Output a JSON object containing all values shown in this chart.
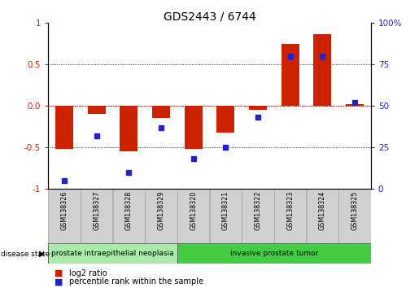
{
  "title": "GDS2443 / 6744",
  "samples": [
    "GSM138326",
    "GSM138327",
    "GSM138328",
    "GSM138329",
    "GSM138320",
    "GSM138321",
    "GSM138322",
    "GSM138323",
    "GSM138324",
    "GSM138325"
  ],
  "log2_ratio": [
    -0.52,
    -0.1,
    -0.55,
    -0.15,
    -0.52,
    -0.32,
    -0.05,
    0.75,
    0.87,
    0.02
  ],
  "percentile_rank": [
    5,
    32,
    10,
    37,
    18,
    25,
    43,
    80,
    80,
    52
  ],
  "disease_state_groups": [
    {
      "label": "prostate intraepithelial neoplasia",
      "start": 0,
      "end": 4,
      "color": "#aaeaaa"
    },
    {
      "label": "invasive prostate tumor",
      "start": 4,
      "end": 10,
      "color": "#44cc44"
    }
  ],
  "ylim": [
    -1.0,
    1.0
  ],
  "yticks_left": [
    -1.0,
    -0.5,
    0.0,
    0.5,
    1.0
  ],
  "yticks_right": [
    0,
    25,
    50,
    75,
    100
  ],
  "bar_color": "#cc2200",
  "point_color": "#2222cc",
  "bg_color": "#ffffff"
}
